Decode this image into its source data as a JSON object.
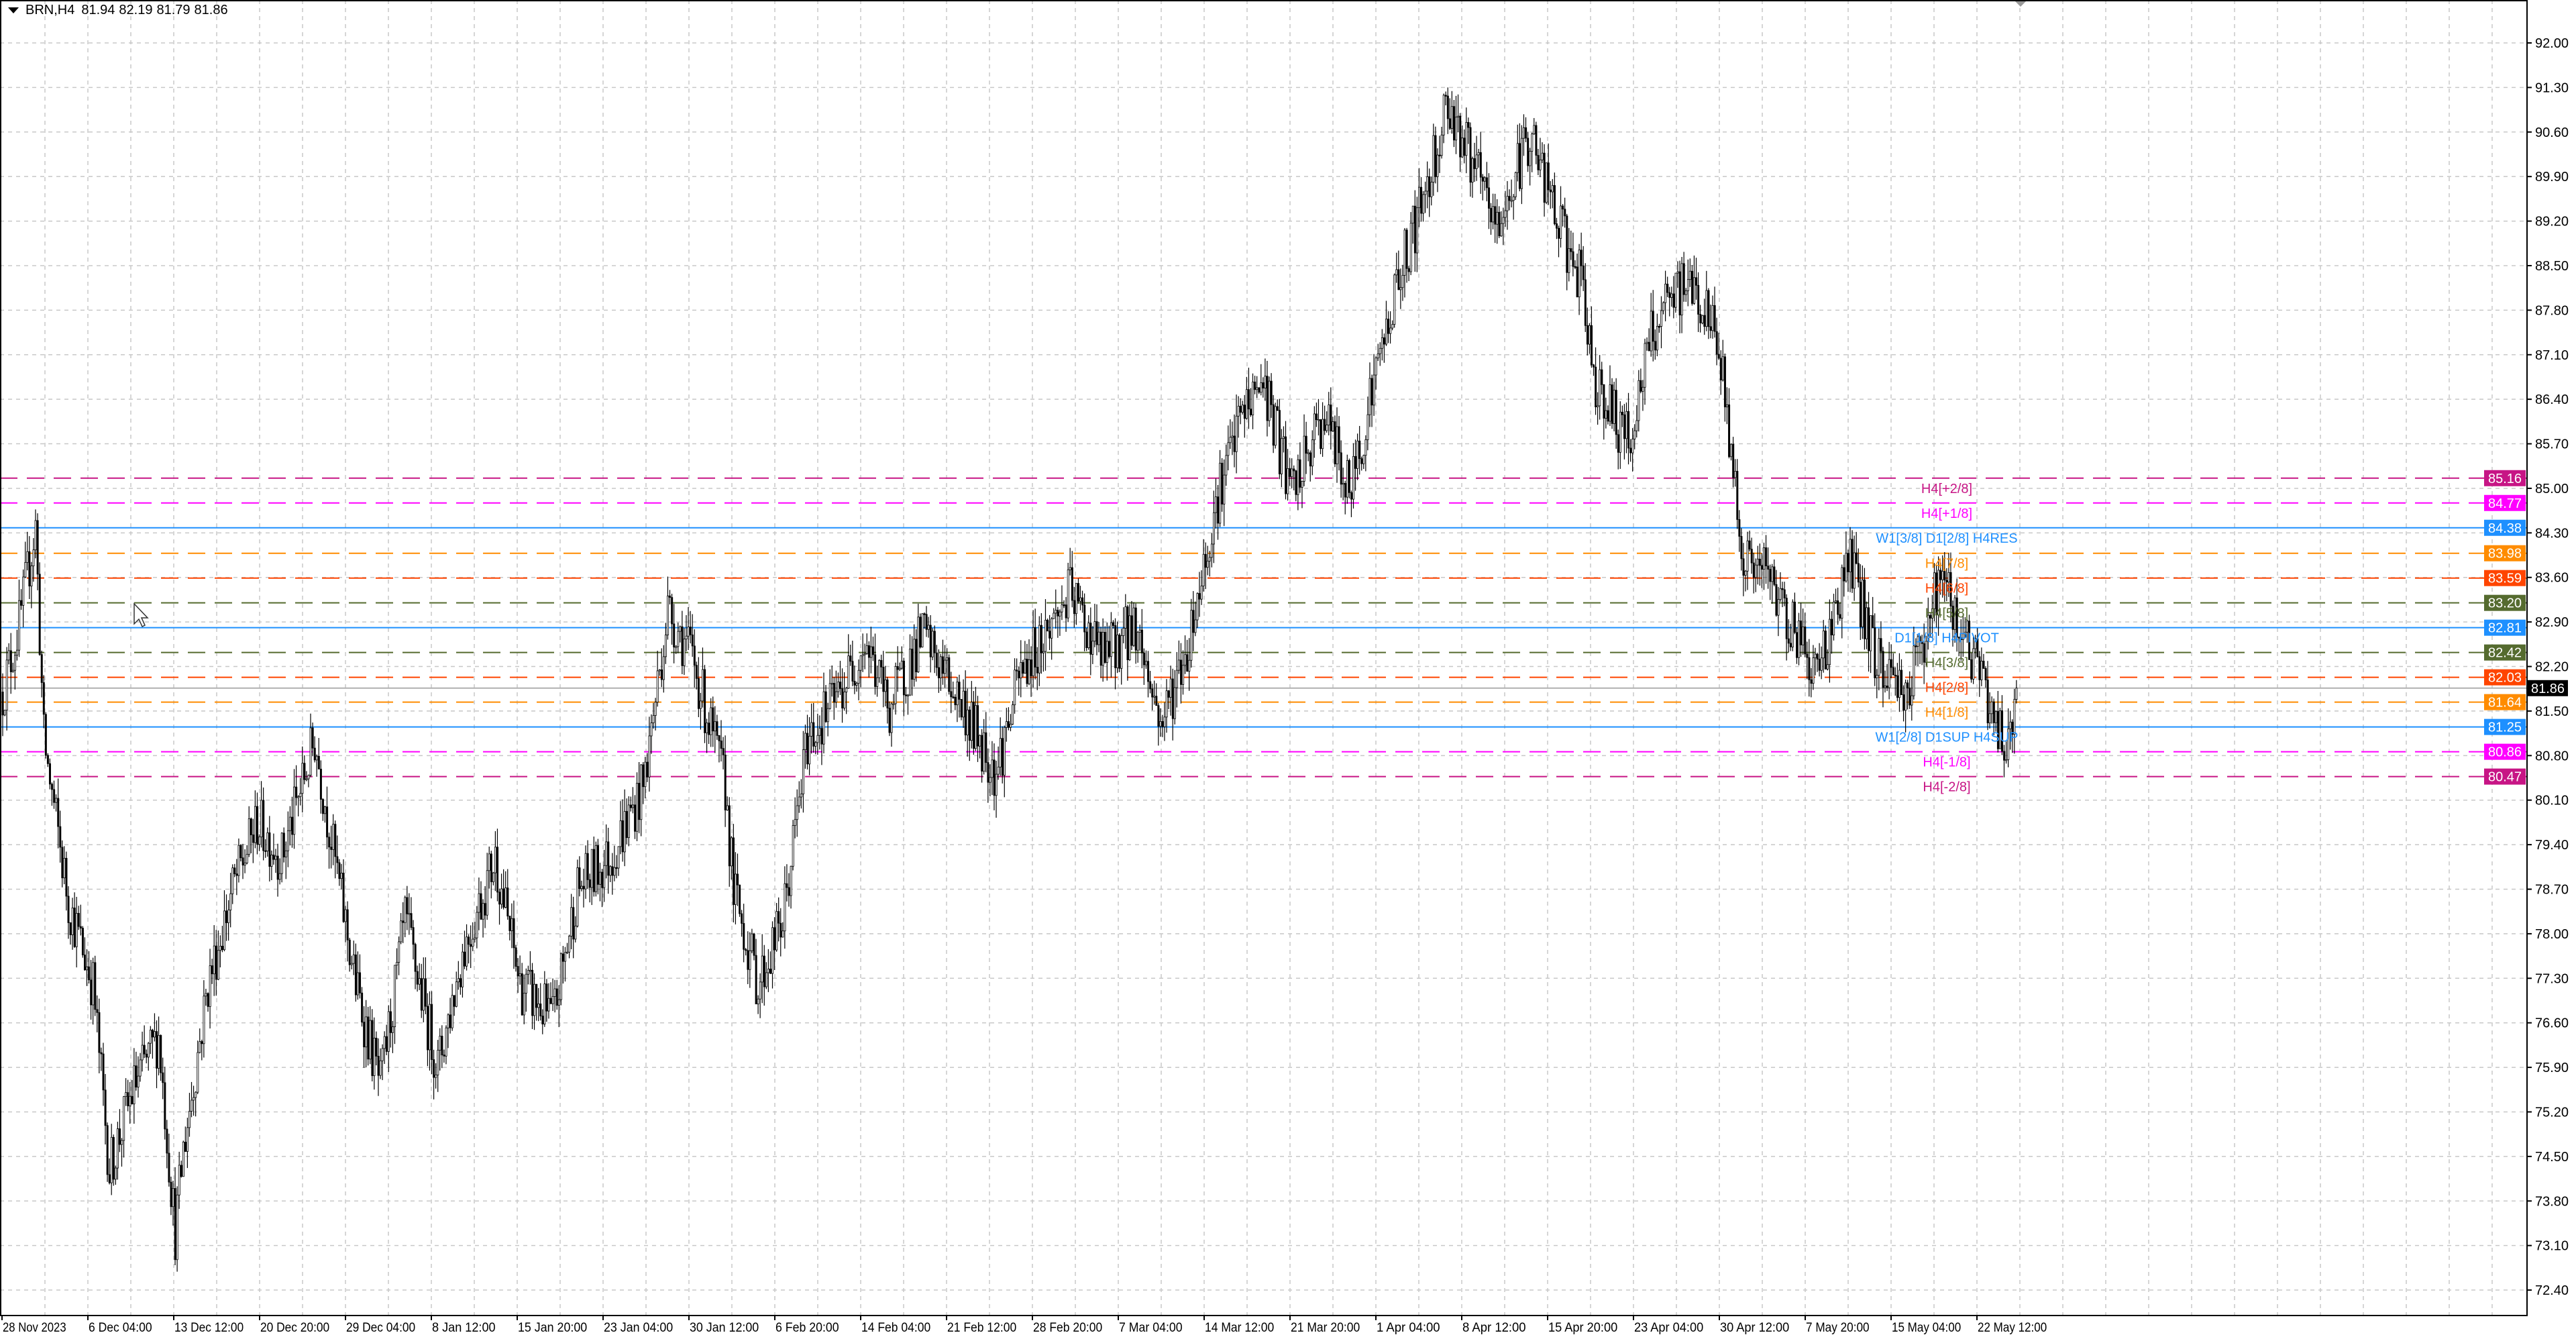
{
  "header": {
    "symbol": "BRN,H4",
    "open": "81.94",
    "high": "82.19",
    "low": "81.79",
    "close": "81.86",
    "menu_icon": "triangle-down-icon"
  },
  "colors": {
    "background": "#FFFFFF",
    "grid": "#C8C8C8",
    "candle": "#000000",
    "current_price_label": "#000000",
    "current_price_line": "#B0B0B0"
  },
  "chart_data": {
    "type": "candlestick",
    "symbol": "BRN",
    "timeframe": "H4",
    "y_ticks": [
      "92.00",
      "91.30",
      "90.60",
      "89.90",
      "89.20",
      "88.50",
      "87.80",
      "87.10",
      "86.40",
      "85.70",
      "85.00",
      "84.30",
      "83.60",
      "82.90",
      "82.20",
      "81.50",
      "80.80",
      "80.10",
      "79.40",
      "78.70",
      "78.00",
      "77.30",
      "76.60",
      "75.90",
      "75.20",
      "74.50",
      "73.80",
      "73.10",
      "72.40"
    ],
    "ylim": [
      72.4,
      92.0
    ],
    "x_ticks": [
      "28 Nov 2023",
      "6 Dec 04:00",
      "13 Dec 12:00",
      "20 Dec 20:00",
      "29 Dec 04:00",
      "8 Jan 12:00",
      "15 Jan 20:00",
      "23 Jan 04:00",
      "30 Jan 12:00",
      "6 Feb 20:00",
      "14 Feb 04:00",
      "21 Feb 12:00",
      "28 Feb 20:00",
      "7 Mar 04:00",
      "14 Mar 12:00",
      "21 Mar 20:00",
      "1 Apr 04:00",
      "8 Apr 12:00",
      "15 Apr 20:00",
      "23 Apr 04:00",
      "30 Apr 12:00",
      "7 May 20:00",
      "15 May 04:00",
      "22 May 12:00"
    ],
    "grid": true,
    "current_price": "81.86",
    "price_path_approx": [
      [
        0,
        81.8
      ],
      [
        8,
        82.85
      ],
      [
        16,
        84.4
      ],
      [
        20,
        81.05
      ],
      [
        32,
        78.5
      ],
      [
        44,
        77.2
      ],
      [
        52,
        74.3
      ],
      [
        64,
        75.6
      ],
      [
        76,
        76.4
      ],
      [
        84,
        73.3
      ],
      [
        88,
        74.6
      ],
      [
        100,
        77.2
      ],
      [
        112,
        78.7
      ],
      [
        124,
        79.75
      ],
      [
        136,
        79.2
      ],
      [
        152,
        81.05
      ],
      [
        160,
        79.5
      ],
      [
        172,
        77.2
      ],
      [
        184,
        75.6
      ],
      [
        196,
        78.2
      ],
      [
        212,
        75.9
      ],
      [
        224,
        77.7
      ],
      [
        240,
        79.2
      ],
      [
        252,
        77.2
      ],
      [
        268,
        76.65
      ],
      [
        280,
        78.7
      ],
      [
        296,
        79.2
      ],
      [
        312,
        80.3
      ],
      [
        324,
        83.1
      ],
      [
        336,
        82.35
      ],
      [
        352,
        80.3
      ],
      [
        356,
        78.7
      ],
      [
        368,
        77.2
      ],
      [
        380,
        78.2
      ],
      [
        392,
        81.05
      ],
      [
        408,
        81.8
      ],
      [
        420,
        82.6
      ],
      [
        432,
        81.55
      ],
      [
        448,
        82.7
      ],
      [
        464,
        81.8
      ],
      [
        484,
        80.55
      ],
      [
        496,
        82.1
      ],
      [
        520,
        83.35
      ],
      [
        536,
        82.35
      ],
      [
        552,
        82.85
      ],
      [
        564,
        81.3
      ],
      [
        576,
        82.35
      ],
      [
        592,
        84.9
      ],
      [
        604,
        86.2
      ],
      [
        614,
        86.7
      ],
      [
        628,
        84.9
      ],
      [
        644,
        86.2
      ],
      [
        656,
        84.9
      ],
      [
        668,
        86.7
      ],
      [
        680,
        88.3
      ],
      [
        692,
        89.55
      ],
      [
        704,
        91.1
      ],
      [
        716,
        90.1
      ],
      [
        728,
        89.05
      ],
      [
        744,
        90.6
      ],
      [
        756,
        89.3
      ],
      [
        768,
        88.3
      ],
      [
        776,
        86.7
      ],
      [
        792,
        85.7
      ],
      [
        804,
        87.5
      ],
      [
        822,
        88.3
      ],
      [
        836,
        87.25
      ],
      [
        848,
        83.9
      ],
      [
        860,
        83.6
      ],
      [
        872,
        82.85
      ],
      [
        884,
        82.1
      ],
      [
        900,
        83.9
      ],
      [
        912,
        82.35
      ],
      [
        928,
        81.8
      ],
      [
        944,
        83.6
      ],
      [
        960,
        82.35
      ],
      [
        976,
        80.9
      ],
      [
        981,
        81.86
      ]
    ],
    "levels": [
      {
        "price": "85.16",
        "label": "H4[+2/8]",
        "color": "#C71585",
        "style": "dashed"
      },
      {
        "price": "84.77",
        "label": "H4[+1/8]",
        "color": "#FF00FF",
        "style": "dashed"
      },
      {
        "price": "84.38",
        "label": "W1[3/8] D1[2/8] H4RES",
        "color": "#1E90FF",
        "style": "solid"
      },
      {
        "price": "83.98",
        "label": "H4[7/8]",
        "color": "#FF8C00",
        "style": "dashed"
      },
      {
        "price": "83.59",
        "label": "H4[6/8]",
        "color": "#FF4500",
        "style": "dashed"
      },
      {
        "price": "83.20",
        "label": "H4[5/8]",
        "color": "#556B2F",
        "style": "dashed"
      },
      {
        "price": "82.81",
        "label": "D1[1/8] H4PIVOT",
        "color": "#1E90FF",
        "style": "solid"
      },
      {
        "price": "82.42",
        "label": "H4[3/8]",
        "color": "#556B2F",
        "style": "dashed"
      },
      {
        "price": "82.03",
        "label": "H4[2/8]",
        "color": "#FF4500",
        "style": "dashed"
      },
      {
        "price": "81.64",
        "label": "H4[1/8]",
        "color": "#FF8C00",
        "style": "dashed"
      },
      {
        "price": "81.25",
        "label": "W1[2/8] D1SUP H4SUP",
        "color": "#1E90FF",
        "style": "solid"
      },
      {
        "price": "80.86",
        "label": "H4[-1/8]",
        "color": "#FF00FF",
        "style": "dashed"
      },
      {
        "price": "80.47",
        "label": "H4[-2/8]",
        "color": "#C71585",
        "style": "dashed"
      }
    ]
  }
}
